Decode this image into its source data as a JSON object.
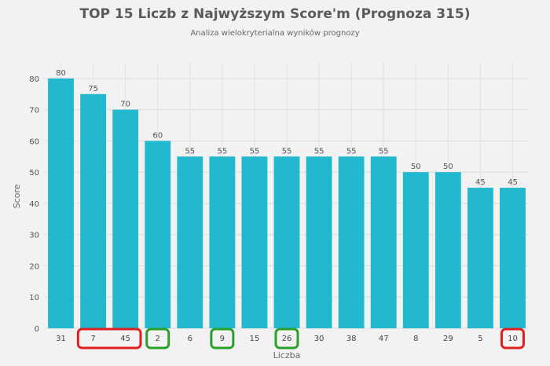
{
  "chart_data": {
    "type": "bar",
    "title": "TOP 15 Liczb z Najwyższym Score'm (Prognoza 315)",
    "subtitle": "Analiza wielokryterialna wyników prognozy",
    "xlabel": "Liczba",
    "ylabel": "Score",
    "ylim": [
      0,
      85
    ],
    "yticks": [
      0,
      10,
      20,
      30,
      40,
      50,
      60,
      70,
      80
    ],
    "grid": true,
    "categories": [
      "31",
      "7",
      "45",
      "2",
      "6",
      "9",
      "15",
      "26",
      "30",
      "38",
      "47",
      "8",
      "29",
      "5",
      "10"
    ],
    "values": [
      80,
      75,
      70,
      60,
      55,
      55,
      55,
      55,
      55,
      55,
      55,
      50,
      50,
      45,
      45
    ],
    "bar_color": "#22b8cf",
    "highlights": [
      {
        "color": "#e02020",
        "categories": [
          "7",
          "45"
        ]
      },
      {
        "color": "#2aa02a",
        "categories": [
          "2"
        ]
      },
      {
        "color": "#2aa02a",
        "categories": [
          "9"
        ]
      },
      {
        "color": "#2aa02a",
        "categories": [
          "26"
        ]
      },
      {
        "color": "#e02020",
        "categories": [
          "10"
        ]
      }
    ]
  }
}
